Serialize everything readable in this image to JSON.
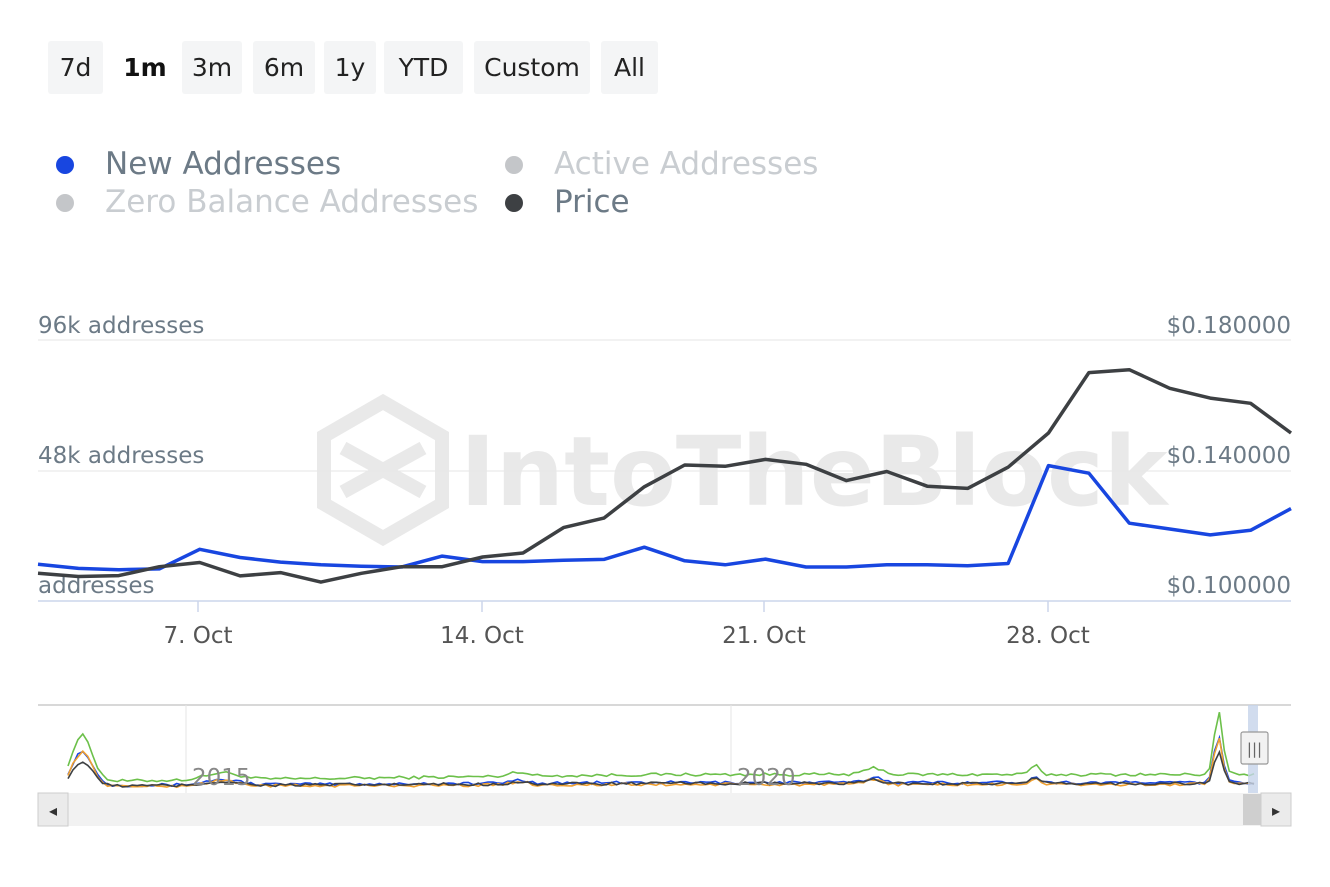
{
  "range_selector": {
    "buttons": [
      {
        "label": "7d",
        "active": false
      },
      {
        "label": "1m",
        "active": true
      },
      {
        "label": "3m",
        "active": false
      },
      {
        "label": "6m",
        "active": false
      },
      {
        "label": "1y",
        "active": false
      },
      {
        "label": "YTD",
        "active": false
      },
      {
        "label": "Custom",
        "active": false
      },
      {
        "label": "All",
        "active": false
      }
    ]
  },
  "legend": {
    "items": [
      {
        "label": "New Addresses",
        "color": "#1846e0",
        "visible": true
      },
      {
        "label": "Active Addresses",
        "color": "#c4c6c9",
        "visible": false
      },
      {
        "label": "Zero Balance Addresses",
        "color": "#c4c6c9",
        "visible": false
      },
      {
        "label": "Price",
        "color": "#3d4043",
        "visible": true
      }
    ],
    "active_text_color": "#6c7a86",
    "inactive_text_color": "#c9cdd1"
  },
  "watermark": {
    "text": "IntoTheBlock"
  },
  "chart_data": {
    "type": "line",
    "x_axis": {
      "tick_labels": [
        "7. Oct",
        "14. Oct",
        "21. Oct",
        "28. Oct"
      ],
      "range": [
        "2023-10-03",
        "2023-11-03"
      ]
    },
    "y_axis_left": {
      "tick_labels": [
        "96k addresses",
        "48k addresses",
        "addresses"
      ],
      "ticks": [
        96000,
        48000,
        0
      ],
      "range": [
        0,
        96000
      ]
    },
    "y_axis_right": {
      "tick_labels": [
        "$0.180000",
        "$0.140000",
        "$0.100000"
      ],
      "ticks": [
        0.18,
        0.14,
        0.1
      ],
      "range": [
        0.1,
        0.18
      ]
    },
    "grid": true,
    "series": [
      {
        "name": "New Addresses",
        "axis": "left",
        "color": "#1846e0",
        "x": [
          "2023-10-03",
          "2023-10-04",
          "2023-10-05",
          "2023-10-06",
          "2023-10-07",
          "2023-10-08",
          "2023-10-09",
          "2023-10-10",
          "2023-10-11",
          "2023-10-12",
          "2023-10-13",
          "2023-10-14",
          "2023-10-15",
          "2023-10-16",
          "2023-10-17",
          "2023-10-18",
          "2023-10-19",
          "2023-10-20",
          "2023-10-21",
          "2023-10-22",
          "2023-10-23",
          "2023-10-24",
          "2023-10-25",
          "2023-10-26",
          "2023-10-27",
          "2023-10-28",
          "2023-10-29",
          "2023-10-30",
          "2023-10-31",
          "2023-11-01",
          "2023-11-02",
          "2023-11-03"
        ],
        "values": [
          13500,
          12000,
          11500,
          11800,
          19000,
          16000,
          14300,
          13300,
          12800,
          12500,
          16500,
          14500,
          14500,
          15000,
          15300,
          19800,
          14800,
          13300,
          15400,
          12500,
          12500,
          13300,
          13300,
          13000,
          13800,
          49800,
          47000,
          28600,
          26500,
          24300,
          26000,
          34000
        ]
      },
      {
        "name": "Price",
        "axis": "right",
        "color": "#3d4043",
        "x": [
          "2023-10-03",
          "2023-10-04",
          "2023-10-05",
          "2023-10-06",
          "2023-10-07",
          "2023-10-08",
          "2023-10-09",
          "2023-10-10",
          "2023-10-11",
          "2023-10-12",
          "2023-10-13",
          "2023-10-14",
          "2023-10-15",
          "2023-10-16",
          "2023-10-17",
          "2023-10-18",
          "2023-10-19",
          "2023-10-20",
          "2023-10-21",
          "2023-10-22",
          "2023-10-23",
          "2023-10-24",
          "2023-10-25",
          "2023-10-26",
          "2023-10-27",
          "2023-10-28",
          "2023-10-29",
          "2023-10-30",
          "2023-10-31",
          "2023-11-01",
          "2023-11-02",
          "2023-11-03"
        ],
        "values": [
          0.1085,
          0.1075,
          0.1078,
          0.1105,
          0.1118,
          0.1077,
          0.1087,
          0.1058,
          0.1085,
          0.1105,
          0.1105,
          0.1135,
          0.1147,
          0.1225,
          0.1254,
          0.135,
          0.1417,
          0.1413,
          0.1434,
          0.1419,
          0.1369,
          0.1397,
          0.1352,
          0.1345,
          0.141,
          0.1515,
          0.17,
          0.1709,
          0.1652,
          0.1622,
          0.1606,
          0.1515
        ]
      }
    ]
  },
  "navigator": {
    "year_labels": [
      "2015",
      "2020"
    ],
    "handle_glyph": "|||",
    "left_arrow": "◂",
    "right_arrow": "▸",
    "series_colors": [
      "#6cc04a",
      "#1846e0",
      "#f0a030",
      "#3d4043"
    ]
  }
}
